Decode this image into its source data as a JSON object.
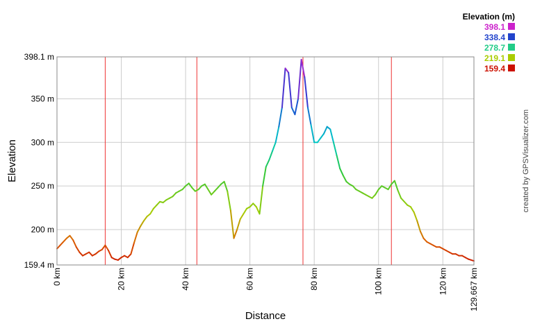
{
  "chart_data": {
    "type": "line",
    "ylabel": "Elevation",
    "xlabel": "Distance",
    "ylim": [
      159.4,
      398.1
    ],
    "xlim": [
      0,
      129.667
    ],
    "y_ticks": [
      {
        "value": 159.4,
        "label": "159.4 m"
      },
      {
        "value": 200,
        "label": "200 m"
      },
      {
        "value": 250,
        "label": "250 m"
      },
      {
        "value": 300,
        "label": "300 m"
      },
      {
        "value": 350,
        "label": "350 m"
      },
      {
        "value": 398.1,
        "label": "398.1 m"
      }
    ],
    "x_ticks": [
      {
        "value": 0,
        "label": "0 km"
      },
      {
        "value": 20,
        "label": "20 km"
      },
      {
        "value": 40,
        "label": "40 km"
      },
      {
        "value": 60,
        "label": "60 km"
      },
      {
        "value": 80,
        "label": "80 km"
      },
      {
        "value": 100,
        "label": "100 km"
      },
      {
        "value": 120,
        "label": "120 km"
      },
      {
        "value": 129.667,
        "label": "129.667 km"
      }
    ],
    "markers_km": [
      15,
      43.5,
      76.5,
      104
    ],
    "grid": true,
    "legend": {
      "title": "Elevation (m)",
      "placement": "top-right",
      "entries": [
        {
          "label": "398.1",
          "color": "#cc22cc"
        },
        {
          "label": "338.4",
          "color": "#2244cc"
        },
        {
          "label": "278.7",
          "color": "#22cc88"
        },
        {
          "label": "219.1",
          "color": "#aacc00"
        },
        {
          "label": "159.4",
          "color": "#cc1100"
        }
      ]
    },
    "series": [
      {
        "x": [
          0,
          1,
          2,
          3,
          4,
          5,
          6,
          7,
          8,
          9,
          10,
          11,
          12,
          13,
          14,
          15,
          16,
          17,
          18,
          19,
          20,
          21,
          22,
          23,
          24,
          25,
          26,
          27,
          28,
          29,
          30,
          31,
          32,
          33,
          34,
          35,
          36,
          37,
          38,
          39,
          40,
          41,
          42,
          43,
          44,
          45,
          46,
          47,
          48,
          49,
          50,
          51,
          52,
          53,
          54,
          55,
          56,
          57,
          58,
          59,
          60,
          61,
          62,
          63,
          64,
          65,
          66,
          67,
          68,
          69,
          70,
          71,
          72,
          73,
          74,
          75,
          76,
          77,
          78,
          79,
          80,
          81,
          82,
          83,
          84,
          85,
          86,
          87,
          88,
          89,
          90,
          91,
          92,
          93,
          94,
          95,
          96,
          97,
          98,
          99,
          100,
          101,
          102,
          103,
          104,
          105,
          106,
          107,
          108,
          109,
          110,
          111,
          112,
          113,
          114,
          115,
          116,
          117,
          118,
          119,
          120,
          121,
          122,
          123,
          124,
          125,
          126,
          127,
          128,
          129.667
        ],
        "values": [
          178,
          182,
          186,
          190,
          193,
          188,
          180,
          174,
          170,
          172,
          174,
          170,
          172,
          175,
          177,
          182,
          176,
          168,
          166,
          165,
          168,
          170,
          168,
          172,
          185,
          197,
          204,
          210,
          215,
          218,
          224,
          228,
          232,
          231,
          234,
          236,
          238,
          242,
          244,
          246,
          250,
          253,
          248,
          244,
          246,
          250,
          252,
          246,
          240,
          244,
          248,
          252,
          255,
          244,
          222,
          190,
          200,
          212,
          218,
          224,
          226,
          230,
          226,
          218,
          250,
          272,
          280,
          290,
          300,
          318,
          340,
          385,
          380,
          340,
          332,
          350,
          395,
          375,
          340,
          320,
          300,
          300,
          305,
          310,
          318,
          315,
          300,
          285,
          270,
          262,
          255,
          252,
          250,
          246,
          244,
          242,
          240,
          238,
          236,
          240,
          246,
          250,
          248,
          246,
          252,
          256,
          245,
          236,
          232,
          228,
          226,
          220,
          210,
          198,
          190,
          186,
          184,
          182,
          180,
          180,
          178,
          176,
          174,
          172,
          172,
          170,
          170,
          168,
          166,
          164
        ]
      }
    ]
  },
  "credit": "created by GPSVisualizer.com",
  "colors": {
    "marker": "#ee3333",
    "grid": "#cccccc"
  }
}
